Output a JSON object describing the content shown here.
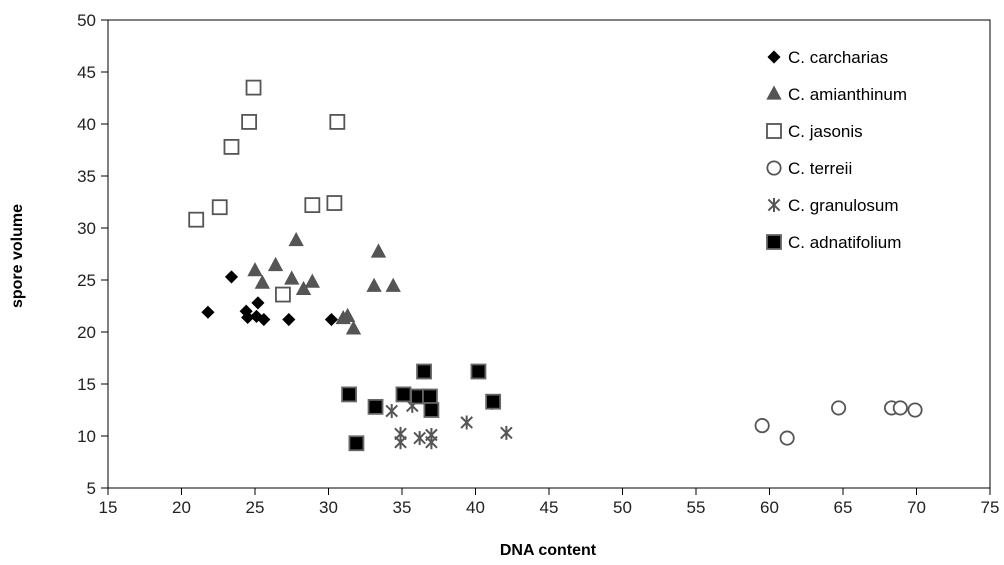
{
  "chart_data": {
    "type": "scatter",
    "title": "",
    "xlabel": "DNA content",
    "ylabel": "spore volume",
    "xlim": [
      15,
      75
    ],
    "ylim": [
      5,
      50
    ],
    "xticks": [
      "15",
      "20",
      "25",
      "30",
      "35",
      "40",
      "45",
      "50",
      "55",
      "60",
      "65",
      "70",
      "75"
    ],
    "yticks": [
      "5",
      "10",
      "15",
      "20",
      "25",
      "30",
      "35",
      "40",
      "45",
      "50"
    ],
    "grid": false,
    "legend_position": "top-right",
    "series": [
      {
        "name": "C. carcharias",
        "marker": "diamond",
        "color": "#000000",
        "points": [
          [
            21.8,
            21.9
          ],
          [
            23.4,
            25.3
          ],
          [
            24.4,
            22.0
          ],
          [
            24.5,
            21.4
          ],
          [
            25.2,
            22.8
          ],
          [
            25.1,
            21.5
          ],
          [
            25.6,
            21.2
          ],
          [
            27.3,
            21.2
          ],
          [
            30.2,
            21.2
          ]
        ]
      },
      {
        "name": "C. amianthinum",
        "marker": "triangle",
        "color": "#555555",
        "points": [
          [
            25.0,
            25.9
          ],
          [
            25.5,
            24.7
          ],
          [
            26.4,
            26.4
          ],
          [
            27.5,
            25.1
          ],
          [
            27.8,
            28.8
          ],
          [
            28.3,
            24.1
          ],
          [
            28.9,
            24.8
          ],
          [
            31.0,
            21.3
          ],
          [
            31.3,
            21.5
          ],
          [
            31.7,
            20.3
          ],
          [
            33.1,
            24.4
          ],
          [
            33.4,
            27.7
          ],
          [
            34.4,
            24.4
          ]
        ]
      },
      {
        "name": "C. jasonis",
        "marker": "square-open",
        "color": "#555555",
        "points": [
          [
            21.0,
            30.8
          ],
          [
            22.6,
            32.0
          ],
          [
            23.4,
            37.8
          ],
          [
            24.6,
            40.2
          ],
          [
            24.9,
            43.5
          ],
          [
            26.9,
            23.6
          ],
          [
            28.9,
            32.2
          ],
          [
            30.4,
            32.4
          ],
          [
            30.6,
            40.2
          ]
        ]
      },
      {
        "name": "C. terreii",
        "marker": "circle-open",
        "color": "#555555",
        "points": [
          [
            59.5,
            11.0
          ],
          [
            61.2,
            9.8
          ],
          [
            64.7,
            12.7
          ],
          [
            68.3,
            12.7
          ],
          [
            68.9,
            12.7
          ],
          [
            69.9,
            12.5
          ]
        ]
      },
      {
        "name": "C. granulosum",
        "marker": "asterisk",
        "color": "#555555",
        "points": [
          [
            34.3,
            12.4
          ],
          [
            34.9,
            10.2
          ],
          [
            34.9,
            9.4
          ],
          [
            35.7,
            12.9
          ],
          [
            36.2,
            9.8
          ],
          [
            37.0,
            10.1
          ],
          [
            37.0,
            9.4
          ],
          [
            39.4,
            11.3
          ],
          [
            41.1,
            13.2
          ],
          [
            42.1,
            10.3
          ]
        ]
      },
      {
        "name": "C. adnatifolium",
        "marker": "square-filled",
        "color": "#000000",
        "points": [
          [
            31.4,
            14.0
          ],
          [
            31.9,
            9.3
          ],
          [
            33.2,
            12.8
          ],
          [
            35.1,
            14.0
          ],
          [
            36.1,
            13.8
          ],
          [
            36.5,
            16.2
          ],
          [
            36.9,
            13.8
          ],
          [
            37.0,
            12.5
          ],
          [
            40.2,
            16.2
          ],
          [
            41.2,
            13.3
          ]
        ]
      }
    ]
  }
}
